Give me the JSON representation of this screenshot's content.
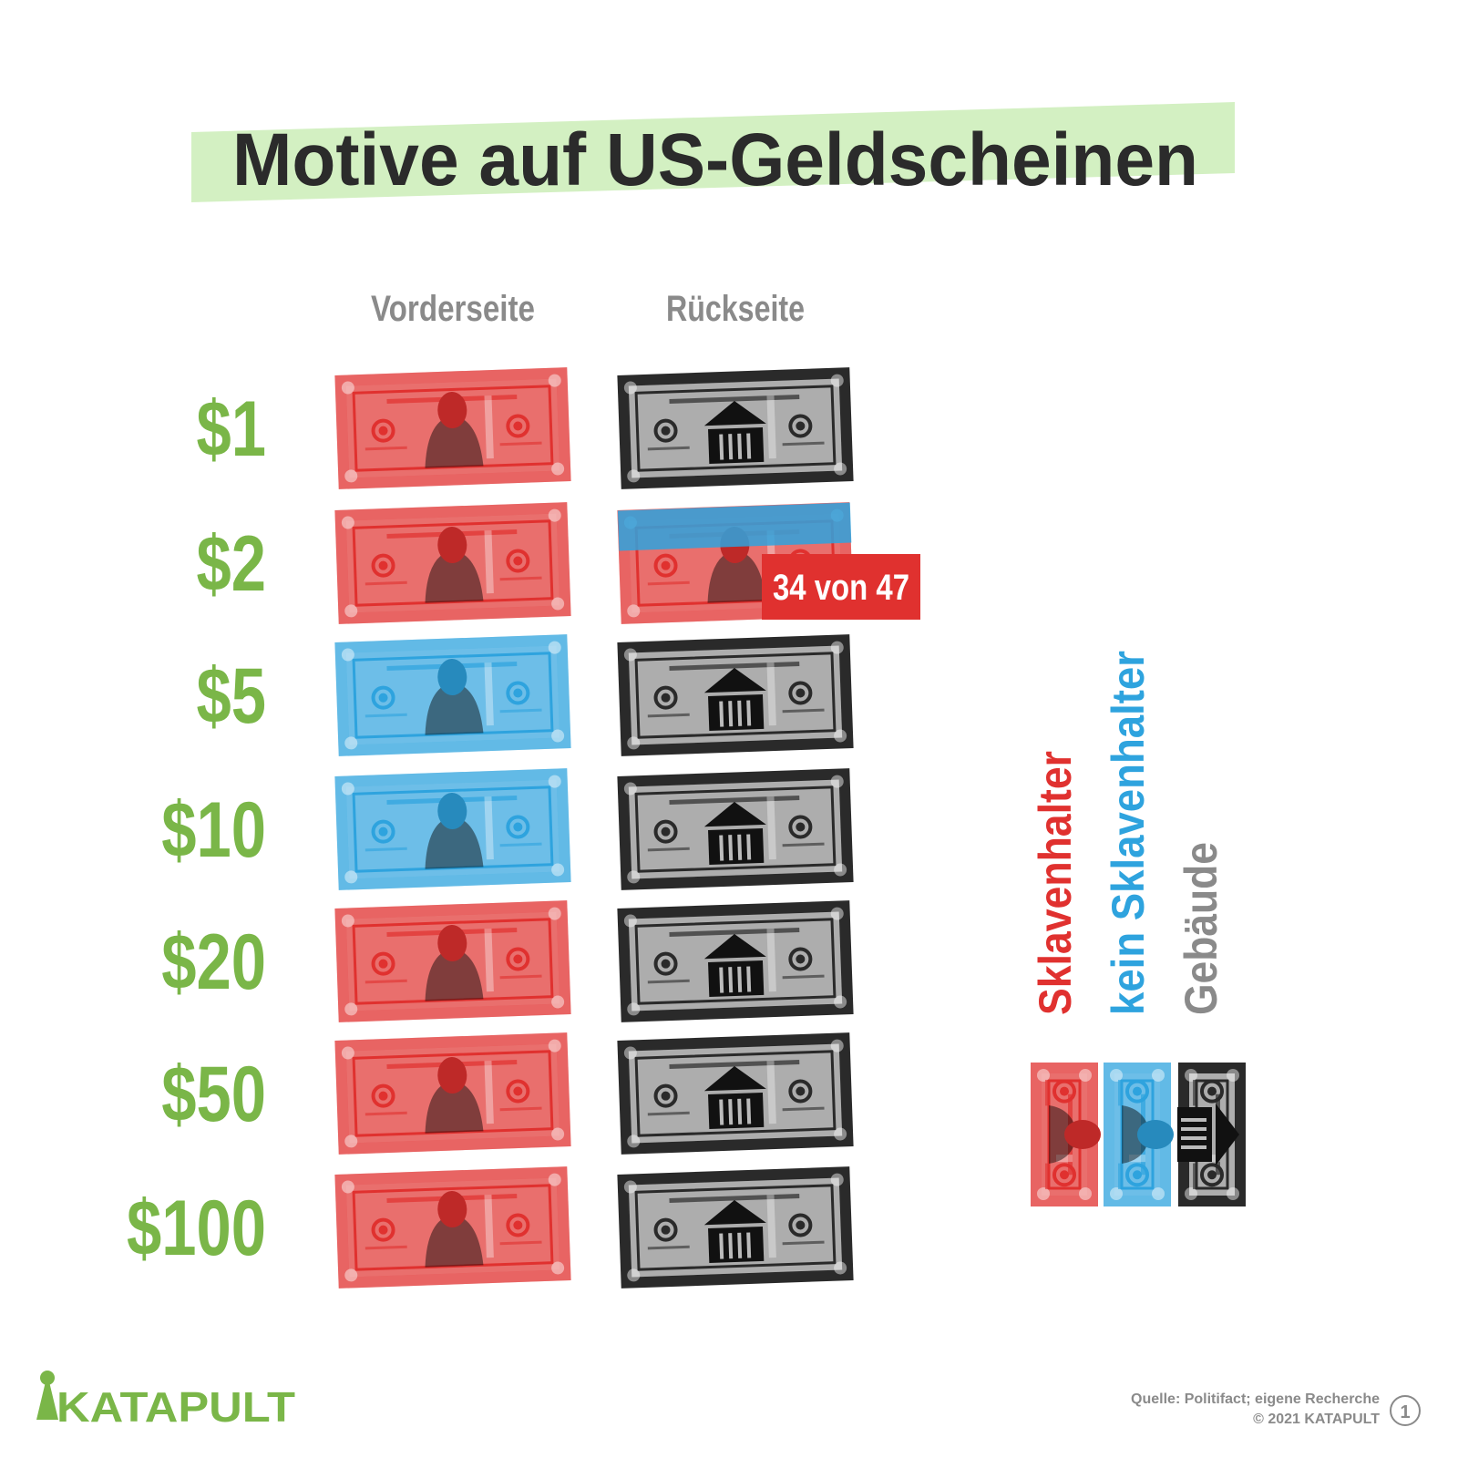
{
  "title": "Motive auf US-Geldscheinen",
  "columns": [
    "Vorderseite",
    "Rückseite"
  ],
  "rows": [
    {
      "label": "$1",
      "front": [
        0
      ],
      "back": [
        2
      ]
    },
    {
      "label": "$2",
      "front": [
        0
      ],
      "back": [
        1,
        0
      ]
    },
    {
      "label": "$5",
      "front": [
        1
      ],
      "back": [
        2
      ]
    },
    {
      "label": "$10",
      "front": [
        1
      ],
      "back": [
        2
      ]
    },
    {
      "label": "$20",
      "front": [
        0
      ],
      "back": [
        2
      ]
    },
    {
      "label": "$50",
      "front": [
        0
      ],
      "back": [
        2
      ]
    },
    {
      "label": "$100",
      "front": [
        0
      ],
      "back": [
        2
      ]
    }
  ],
  "annotation": "34 von 47",
  "legend": [
    {
      "label": "Sklavenhalter",
      "color": "#e0312f"
    },
    {
      "label": "kein Sklavenhalter",
      "color": "#2ea3de"
    },
    {
      "label": "Gebäude",
      "color": "#8a8a8a"
    }
  ],
  "logo": "KATAPULT",
  "source": "Quelle: Politifact; eigene Recherche",
  "copyright": "© 2021 KATAPULT",
  "page": "1"
}
